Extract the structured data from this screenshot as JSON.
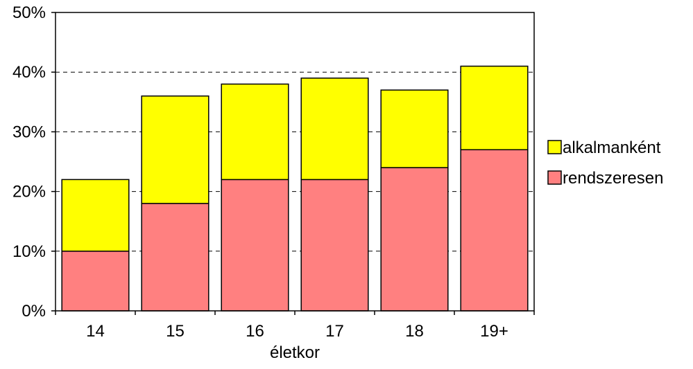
{
  "chart_data": {
    "type": "bar",
    "stacked": true,
    "categories": [
      "14",
      "15",
      "16",
      "17",
      "18",
      "19+"
    ],
    "series": [
      {
        "name": "rendszeresen",
        "values": [
          10,
          18,
          22,
          22,
          24,
          27
        ],
        "color": "#ff8080"
      },
      {
        "name": "alkalmanként",
        "values": [
          12,
          18,
          16,
          17,
          13,
          14
        ],
        "color": "#ffff00"
      }
    ],
    "xlabel": "életkor",
    "ylabel": "",
    "ylim": [
      0,
      50
    ],
    "yticks": [
      "0%",
      "10%",
      "20%",
      "30%",
      "40%",
      "50%"
    ],
    "grid": "dashed horizontal",
    "legend_position": "right",
    "legend_order": [
      "alkalmanként",
      "rendszeresen"
    ]
  }
}
